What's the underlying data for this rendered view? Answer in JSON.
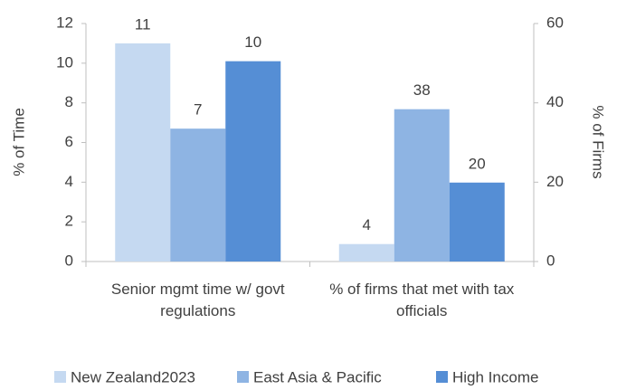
{
  "chart_data": {
    "type": "bar",
    "categories": [
      "Senior mgmt time w/ govt regulations",
      "% of firms that met with tax officials"
    ],
    "category_axes": [
      "y",
      "y2"
    ],
    "series": [
      {
        "name": "New Zealand2023",
        "color": "#c5d9f1",
        "values": [
          11,
          4.4
        ],
        "value_labels": [
          "11",
          "4"
        ]
      },
      {
        "name": "East Asia & Pacific",
        "color": "#8eb4e3",
        "values": [
          6.7,
          38.4
        ],
        "value_labels": [
          "7",
          "38"
        ]
      },
      {
        "name": "High Income",
        "color": "#558ed5",
        "values": [
          10.1,
          19.9
        ],
        "value_labels": [
          "10",
          "20"
        ]
      }
    ],
    "ylabel": "% of Time",
    "y2label": "% of Firms",
    "ylim": [
      0,
      12
    ],
    "yticks": [
      0,
      2,
      4,
      6,
      8,
      10,
      12
    ],
    "y2lim": [
      0,
      60
    ],
    "y2ticks": [
      0,
      20,
      40,
      60
    ],
    "legend": "bottom"
  }
}
